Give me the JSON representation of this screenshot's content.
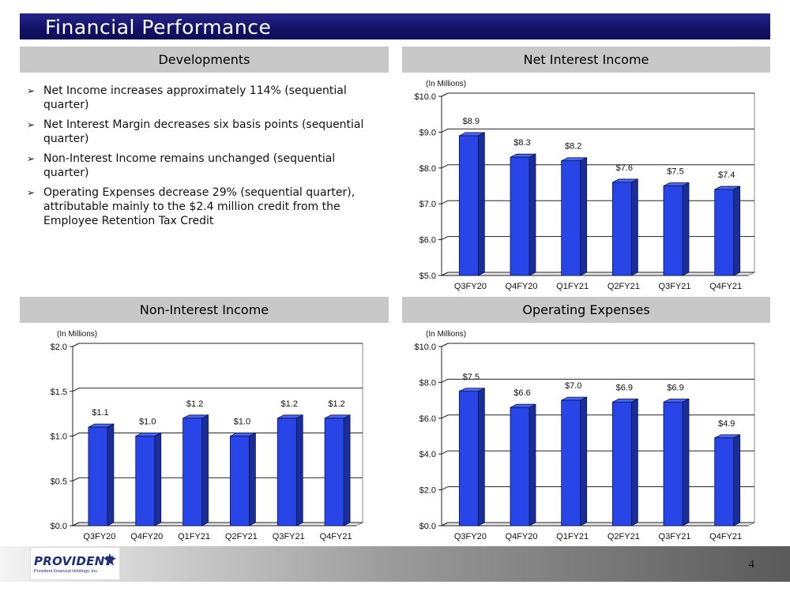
{
  "slide": {
    "title": "Financial Performance",
    "page_number": "4"
  },
  "developments": {
    "header": "Developments",
    "bullets": [
      "Net Income increases approximately 114% (sequential quarter)",
      "Net Interest Margin decreases six basis points (sequential quarter)",
      "Non-Interest Income remains unchanged (sequential quarter)",
      "Operating Expenses decrease 29% (sequential quarter), attributable mainly to the $2.4 million credit from the Employee Retention Tax Credit"
    ]
  },
  "logo": {
    "name": "PROVIDENT",
    "subtitle": "Provident Financial Holdings, Inc."
  },
  "colors": {
    "bar_face": "#2846e8",
    "bar_side": "#1a2e9a",
    "bar_top": "#4a66f2",
    "title_bar": "#111166",
    "panel_header": "#c8c8c8"
  },
  "chart_data": [
    {
      "id": "net-interest-income",
      "header": "Net Interest Income",
      "type": "bar",
      "unit_note": "(In Millions)",
      "categories": [
        "Q3FY20",
        "Q4FY20",
        "Q1FY21",
        "Q2FY21",
        "Q3FY21",
        "Q4FY21"
      ],
      "values": [
        8.9,
        8.3,
        8.2,
        7.6,
        7.5,
        7.4
      ],
      "data_labels": [
        "$8.9",
        "$8.3",
        "$8.2",
        "$7.6",
        "$7.5",
        "$7.4"
      ],
      "ylim": [
        5.0,
        10.0
      ],
      "yticks": [
        5.0,
        6.0,
        7.0,
        8.0,
        9.0,
        10.0
      ],
      "ytick_labels": [
        "$5.0",
        "$6.0",
        "$7.0",
        "$8.0",
        "$9.0",
        "$10.0"
      ],
      "grid": true
    },
    {
      "id": "non-interest-income",
      "header": "Non-Interest Income",
      "type": "bar",
      "unit_note": "(In Millions)",
      "categories": [
        "Q3FY20",
        "Q4FY20",
        "Q1FY21",
        "Q2FY21",
        "Q3FY21",
        "Q4FY21"
      ],
      "values": [
        1.1,
        1.0,
        1.2,
        1.0,
        1.2,
        1.2
      ],
      "data_labels": [
        "$1.1",
        "$1.0",
        "$1.2",
        "$1.0",
        "$1.2",
        "$1.2"
      ],
      "ylim": [
        0.0,
        2.0
      ],
      "yticks": [
        0.0,
        0.5,
        1.0,
        1.5,
        2.0
      ],
      "ytick_labels": [
        "$0.0",
        "$0.5",
        "$1.0",
        "$1.5",
        "$2.0"
      ],
      "grid": true
    },
    {
      "id": "operating-expenses",
      "header": "Operating Expenses",
      "type": "bar",
      "unit_note": "(In Millions)",
      "categories": [
        "Q3FY20",
        "Q4FY20",
        "Q1FY21",
        "Q2FY21",
        "Q3FY21",
        "Q4FY21"
      ],
      "values": [
        7.5,
        6.6,
        7.0,
        6.9,
        6.9,
        4.9
      ],
      "data_labels": [
        "$7.5",
        "$6.6",
        "$7.0",
        "$6.9",
        "$6.9",
        "$4.9"
      ],
      "ylim": [
        0.0,
        10.0
      ],
      "yticks": [
        0.0,
        2.0,
        4.0,
        6.0,
        8.0,
        10.0
      ],
      "ytick_labels": [
        "$0.0",
        "$2.0",
        "$4.0",
        "$6.0",
        "$8.0",
        "$10.0"
      ],
      "grid": true
    }
  ]
}
